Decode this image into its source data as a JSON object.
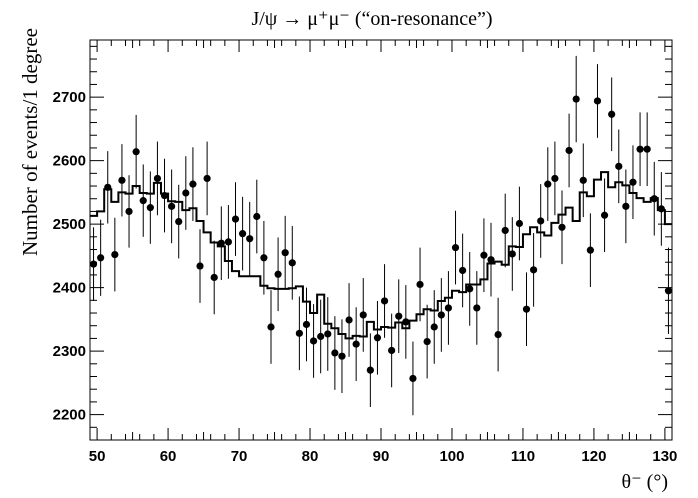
{
  "chart_data": {
    "type": "scatter",
    "title": "J/ψ → μ⁺μ⁻ (“on-resonance”)",
    "xlabel": "θ⁻ (°)",
    "ylabel": "Number of events/1 degree",
    "xlim": [
      49,
      131
    ],
    "ylim": [
      2160,
      2790
    ],
    "x_ticks": [
      50,
      60,
      70,
      80,
      90,
      100,
      110,
      120,
      130
    ],
    "y_ticks": [
      2200,
      2300,
      2400,
      2500,
      2600,
      2700
    ],
    "grid": false,
    "legend": "none",
    "colors": {
      "data": "#000000",
      "histogram": "#000000"
    },
    "series": [
      {
        "kind": "points",
        "x": [
          49.5,
          50.5,
          51.5,
          52.5,
          53.5,
          54.5,
          55.5,
          56.5,
          57.5,
          58.5,
          59.5,
          60.5,
          61.5,
          62.5,
          63.5,
          64.5,
          65.5,
          66.5,
          67.5,
          68.5,
          69.5,
          70.5,
          71.5,
          72.5,
          73.5,
          74.5,
          75.5,
          76.5,
          77.5,
          78.5,
          79.5,
          80.5,
          81.5,
          82.5,
          83.5,
          84.5,
          85.5,
          86.5,
          87.5,
          88.5,
          89.5,
          90.5,
          91.5,
          92.5,
          93.5,
          94.5,
          95.5,
          96.5,
          97.5,
          98.5,
          99.5,
          100.5,
          101.5,
          102.5,
          103.5,
          104.5,
          105.5,
          106.5,
          107.5,
          108.5,
          109.5,
          110.5,
          111.5,
          112.5,
          113.5,
          114.5,
          115.5,
          116.5,
          117.5,
          118.5,
          119.5,
          120.5,
          121.5,
          122.5,
          123.5,
          124.5,
          125.5,
          126.5,
          127.5,
          128.5,
          129.5,
          130.5
        ],
        "y": [
          2437,
          2447,
          2558,
          2452,
          2569,
          2520,
          2614,
          2537,
          2526,
          2572,
          2545,
          2528,
          2504,
          2549,
          2563,
          2434,
          2572,
          2416,
          2470,
          2472,
          2508,
          2485,
          2477,
          2512,
          2447,
          2338,
          2421,
          2455,
          2439,
          2328,
          2342,
          2316,
          2323,
          2327,
          2297,
          2292,
          2349,
          2311,
          2357,
          2270,
          2321,
          2379,
          2301,
          2355,
          2346,
          2257,
          2405,
          2315,
          2338,
          2357,
          2368,
          2463,
          2427,
          2398,
          2368,
          2451,
          2444,
          2326,
          2490,
          2453,
          2501,
          2366,
          2428,
          2505,
          2563,
          2572,
          2495,
          2616,
          2697,
          2569,
          2459,
          2694,
          2514,
          2673,
          2591,
          2528,
          2566,
          2618,
          2618,
          2540,
          2524,
          2395
        ],
        "err": [
          58,
          60,
          57,
          58,
          57,
          57,
          58,
          57,
          57,
          58,
          58,
          58,
          58,
          58,
          58,
          58,
          58,
          58,
          58,
          58,
          58,
          58,
          58,
          58,
          58,
          58,
          58,
          58,
          58,
          58,
          58,
          58,
          58,
          58,
          58,
          58,
          58,
          58,
          58,
          58,
          58,
          58,
          58,
          58,
          58,
          58,
          58,
          58,
          58,
          58,
          58,
          58,
          58,
          58,
          58,
          58,
          58,
          58,
          58,
          58,
          58,
          58,
          58,
          58,
          58,
          58,
          58,
          58,
          68,
          58,
          58,
          58,
          58,
          58,
          58,
          58,
          58,
          58,
          58,
          58,
          58,
          68
        ]
      },
      {
        "kind": "histogram",
        "bins_left": [
          49,
          50,
          51,
          52,
          53,
          54,
          55,
          56,
          57,
          58,
          59,
          60,
          61,
          62,
          63,
          64,
          65,
          66,
          67,
          68,
          69,
          70,
          71,
          72,
          73,
          74,
          75,
          76,
          77,
          78,
          79,
          80,
          81,
          82,
          83,
          84,
          85,
          86,
          87,
          88,
          89,
          90,
          91,
          92,
          93,
          94,
          95,
          96,
          97,
          98,
          99,
          100,
          101,
          102,
          103,
          104,
          105,
          106,
          107,
          108,
          109,
          110,
          111,
          112,
          113,
          114,
          115,
          116,
          117,
          118,
          119,
          120,
          121,
          122,
          123,
          124,
          125,
          126,
          127,
          128,
          129,
          130
        ],
        "values": [
          2513,
          2520,
          2555,
          2535,
          2550,
          2548,
          2560,
          2549,
          2548,
          2565,
          2548,
          2536,
          2535,
          2522,
          2525,
          2505,
          2487,
          2471,
          2465,
          2442,
          2426,
          2418,
          2418,
          2418,
          2403,
          2399,
          2398,
          2398,
          2399,
          2402,
          2378,
          2360,
          2389,
          2343,
          2336,
          2327,
          2320,
          2324,
          2323,
          2346,
          2334,
          2338,
          2337,
          2345,
          2336,
          2348,
          2358,
          2366,
          2364,
          2379,
          2384,
          2395,
          2393,
          2405,
          2405,
          2413,
          2438,
          2441,
          2436,
          2465,
          2464,
          2484,
          2495,
          2487,
          2482,
          2502,
          2515,
          2526,
          2505,
          2550,
          2544,
          2570,
          2582,
          2558,
          2566,
          2561,
          2549,
          2541,
          2535,
          2541,
          2522,
          2500
        ]
      }
    ]
  }
}
